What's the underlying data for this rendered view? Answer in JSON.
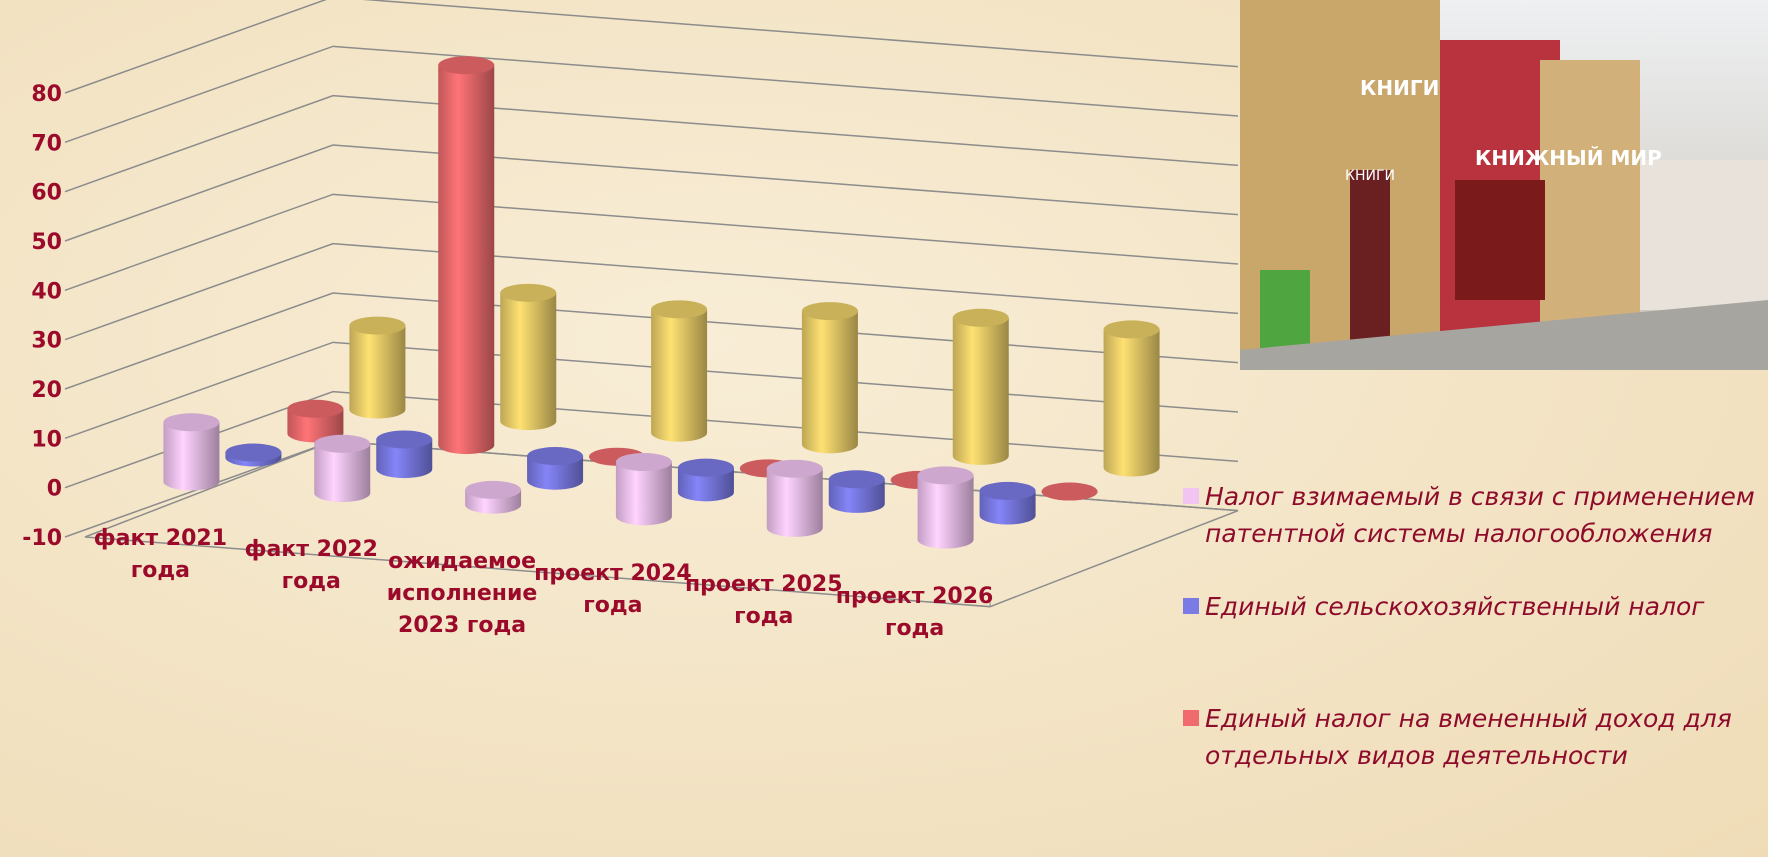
{
  "chart_data": {
    "type": "bar3d",
    "categories": [
      "факт 2021 года",
      "факт 2022 года",
      "ожидаемое исполнение 2023 года",
      "проект 2024 года",
      "проект 2025 года",
      "проект 2026 года"
    ],
    "series": [
      {
        "name": "Налог взимаемый в связи с применением патентной системы налогообложения",
        "color": "#f2c4f2",
        "values": [
          12,
          10,
          3,
          11,
          12,
          13
        ]
      },
      {
        "name": "Единый сельскохозяйственный налог",
        "color": "#7b7be6",
        "values": [
          1,
          6,
          5,
          5,
          5,
          5
        ]
      },
      {
        "name": "Единый налог на вмененный доход для отдельных видов деятельности",
        "color": "#f06b6e",
        "values": [
          5,
          77,
          0,
          0,
          0,
          0
        ]
      },
      {
        "color": "#ecd06a",
        "values": [
          17,
          26,
          25,
          27,
          28,
          28
        ]
      }
    ],
    "ylim": [
      -10,
      80
    ],
    "yticks": [
      -10,
      0,
      10,
      20,
      30,
      40,
      50,
      60,
      70,
      80
    ],
    "grid": true
  },
  "photo": {
    "signs": [
      "КНИГИ",
      "КНИГИ",
      "КНИЖНЫЙ МИР"
    ]
  }
}
